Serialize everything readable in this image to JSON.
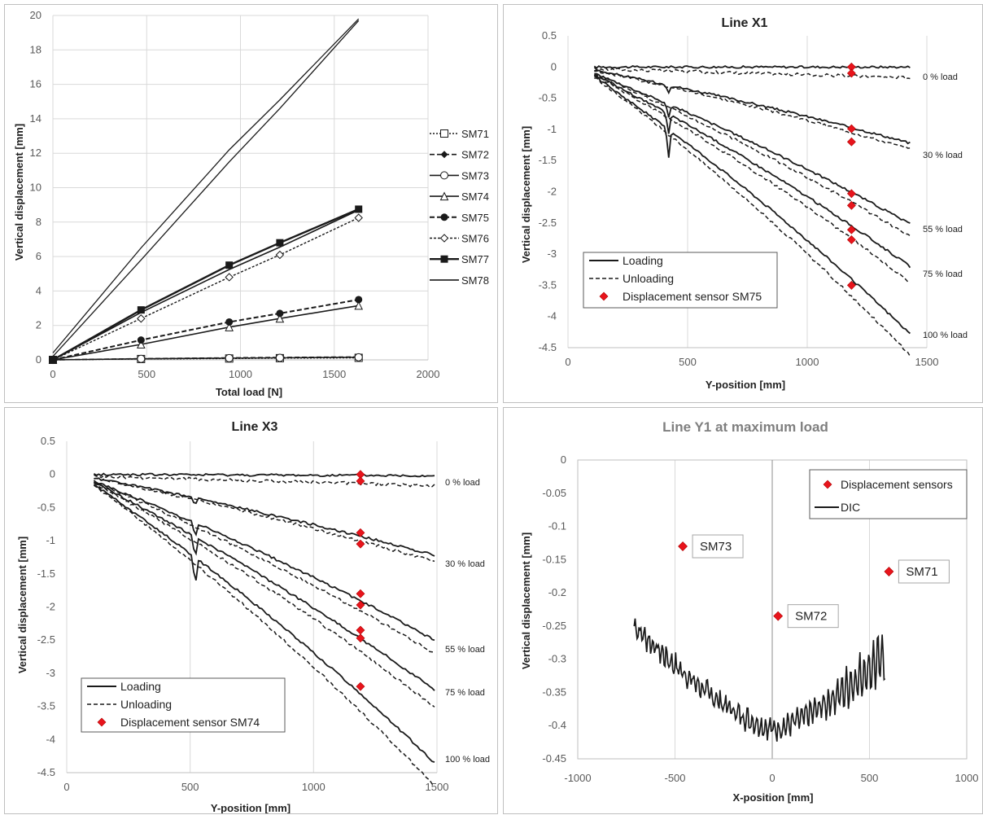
{
  "panels": [
    {
      "id": "p1",
      "title": "",
      "xlabel": "Total load [N]",
      "ylabel": "Vertical displacement [mm]",
      "xlim": [
        0,
        2000
      ],
      "ylim": [
        0,
        20
      ],
      "xticks": [
        0,
        500,
        1000,
        1500,
        2000
      ],
      "yticks": [
        0,
        2,
        4,
        6,
        8,
        10,
        12,
        14,
        16,
        18,
        20
      ]
    },
    {
      "id": "p2",
      "title": "Line X1",
      "xlabel": "Y-position [mm]",
      "ylabel": "Vertical displacement [mm]",
      "xlim": [
        0,
        1500
      ],
      "ylim": [
        -4.5,
        0.5
      ],
      "xticks": [
        0,
        500,
        1000,
        1500
      ],
      "yticks": [
        0.5,
        0,
        -0.5,
        -1,
        -1.5,
        -2,
        -2.5,
        -3,
        -3.5,
        -4,
        -4.5
      ],
      "load_labels": [
        "0 % load",
        "30 % load",
        "55 % load",
        "75 % load",
        "100 % load"
      ],
      "legend": [
        "Loading",
        "Unloading",
        "Displacement sensor SM75"
      ]
    },
    {
      "id": "p3",
      "title": "Line X3",
      "xlabel": "Y-position [mm]",
      "ylabel": "Vertical displacement [mm]",
      "xlim": [
        0,
        1500
      ],
      "ylim": [
        -4.5,
        0.5
      ],
      "xticks": [
        0,
        500,
        1000,
        1500
      ],
      "yticks": [
        0.5,
        0,
        -0.5,
        -1,
        -1.5,
        -2,
        -2.5,
        -3,
        -3.5,
        -4,
        -4.5
      ],
      "load_labels": [
        "0 % load",
        "30 % load",
        "55 % load",
        "75 % load",
        "100 % load"
      ],
      "legend": [
        "Loading",
        "Unloading",
        "Displacement sensor SM74"
      ]
    },
    {
      "id": "p4",
      "title": "Line Y1 at maximum load",
      "xlabel": "X-position [mm]",
      "ylabel": "Vertical displacement [mm]",
      "xlim": [
        -1000,
        1000
      ],
      "ylim": [
        -0.45,
        0
      ],
      "xticks": [
        -1000,
        -500,
        0,
        500,
        1000
      ],
      "yticks": [
        0,
        -0.05,
        -0.1,
        -0.15,
        -0.2,
        -0.25,
        -0.3,
        -0.35,
        -0.4,
        -0.45
      ],
      "legend": [
        "Displacement sensors",
        "DIC"
      ]
    }
  ],
  "colors": {
    "sensor": "#e8141c",
    "line": "#1a1a1a",
    "grid": "#d9d9d9",
    "axis": "#bfbfbf"
  },
  "chart_data": [
    {
      "type": "line",
      "x": [
        0,
        470,
        940,
        1210,
        1630
      ],
      "series": [
        {
          "name": "SM71",
          "values": [
            0,
            0.05,
            0.08,
            0.1,
            0.12
          ]
        },
        {
          "name": "SM72",
          "values": [
            0,
            0.07,
            0.12,
            0.14,
            0.17
          ]
        },
        {
          "name": "SM73",
          "values": [
            0,
            0.06,
            0.1,
            0.12,
            0.15
          ]
        },
        {
          "name": "SM74",
          "values": [
            0,
            0.9,
            1.9,
            2.4,
            3.15
          ]
        },
        {
          "name": "SM75",
          "values": [
            0,
            1.15,
            2.2,
            2.7,
            3.5
          ]
        },
        {
          "name": "SM76",
          "values": [
            0,
            2.4,
            4.8,
            6.1,
            8.25
          ]
        },
        {
          "name": "SM77",
          "values": [
            0,
            2.9,
            5.5,
            6.8,
            8.75
          ]
        },
        {
          "name": "SM78",
          "values": [
            0,
            2.75,
            5.25,
            6.55,
            8.7
          ]
        },
        {
          "name": "",
          "values": [
            0.4,
            6.5,
            12.2,
            15.1,
            19.8
          ]
        },
        {
          "name": "",
          "values": [
            0.2,
            5.8,
            11.5,
            14.6,
            19.7
          ]
        }
      ]
    },
    {
      "type": "line",
      "series": [
        {
          "name": "0 % load",
          "x": [
            110,
            1430
          ],
          "values": [
            0,
            0
          ]
        },
        {
          "name": "30 % load",
          "x": [
            110,
            1430
          ],
          "values": [
            -0.05,
            -1.22
          ]
        },
        {
          "name": "55 % load",
          "x": [
            110,
            1430
          ],
          "values": [
            -0.1,
            -2.52
          ]
        },
        {
          "name": "75 % load",
          "x": [
            110,
            1430
          ],
          "values": [
            -0.12,
            -3.2
          ]
        },
        {
          "name": "100 % load",
          "x": [
            110,
            1430
          ],
          "values": [
            -0.15,
            -4.28
          ]
        }
      ],
      "sensor_SM75": {
        "x": 1185,
        "values": [
          0,
          -0.1,
          -0.99,
          -1.2,
          -2.03,
          -2.22,
          -2.61,
          -2.77,
          -3.5
        ]
      }
    },
    {
      "type": "line",
      "series": [
        {
          "name": "0 % load",
          "x": [
            110,
            1490
          ],
          "values": [
            0,
            -0.02
          ]
        },
        {
          "name": "30 % load",
          "x": [
            110,
            1490
          ],
          "values": [
            -0.05,
            -1.22
          ]
        },
        {
          "name": "55 % load",
          "x": [
            110,
            1490
          ],
          "values": [
            -0.1,
            -2.5
          ]
        },
        {
          "name": "75 % load",
          "x": [
            110,
            1490
          ],
          "values": [
            -0.12,
            -3.25
          ]
        },
        {
          "name": "100 % load",
          "x": [
            110,
            1490
          ],
          "values": [
            -0.15,
            -4.35
          ]
        }
      ],
      "sensor_SM74": {
        "x": 1190,
        "values": [
          0,
          -0.1,
          -0.88,
          -1.05,
          -1.8,
          -1.97,
          -2.35,
          -2.47,
          -3.2
        ]
      }
    },
    {
      "type": "scatter",
      "sensors": [
        {
          "name": "SM73",
          "x": -460,
          "y": -0.13
        },
        {
          "name": "SM72",
          "x": 30,
          "y": -0.235
        },
        {
          "name": "SM71",
          "x": 600,
          "y": -0.168
        }
      ],
      "dic_range_x": [
        -710,
        580
      ],
      "dic_range_y": [
        -0.424,
        -0.238
      ]
    }
  ]
}
